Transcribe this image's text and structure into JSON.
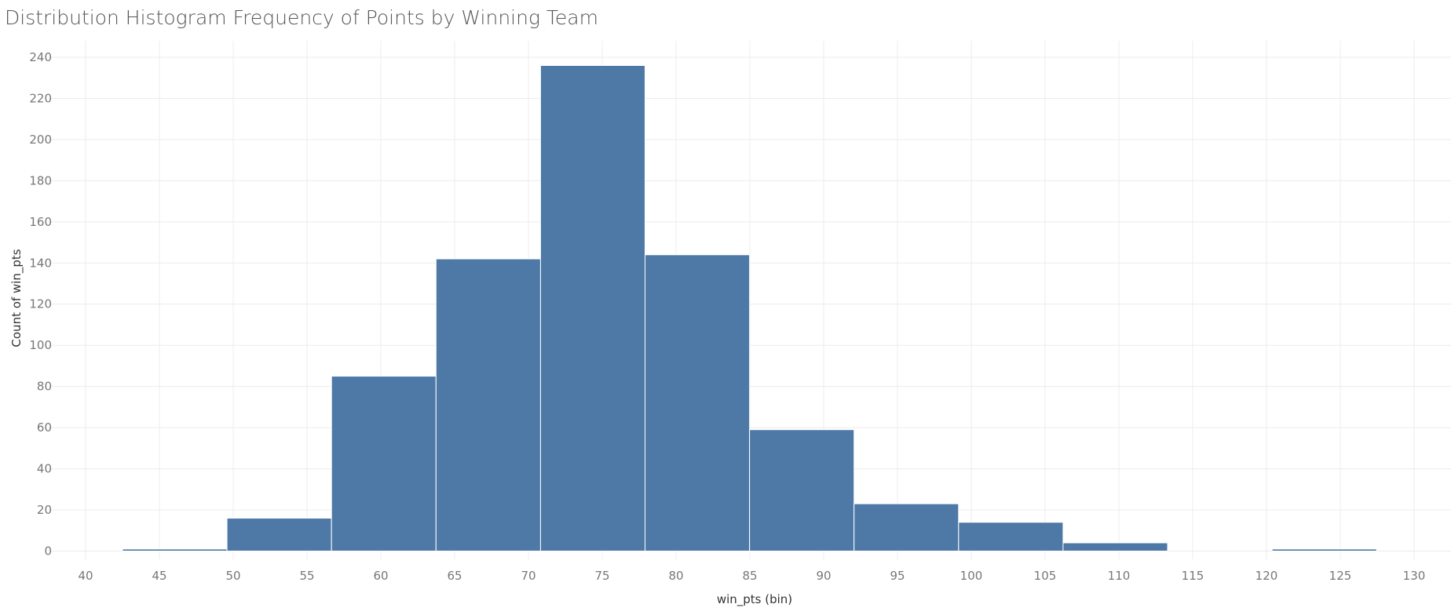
{
  "chart_data": {
    "type": "bar",
    "title": "Distribution Histogram Frequency of Points by Winning Team",
    "xlabel": "win_pts (bin)",
    "ylabel": "Count of win_pts",
    "bin_width": 7.08,
    "bins": [
      {
        "start": 42.5,
        "end": 49.58,
        "count": 1
      },
      {
        "start": 49.58,
        "end": 56.66,
        "count": 16
      },
      {
        "start": 56.66,
        "end": 63.74,
        "count": 85
      },
      {
        "start": 63.74,
        "end": 70.82,
        "count": 142
      },
      {
        "start": 70.82,
        "end": 77.9,
        "count": 236
      },
      {
        "start": 77.9,
        "end": 84.98,
        "count": 144
      },
      {
        "start": 84.98,
        "end": 92.06,
        "count": 59
      },
      {
        "start": 92.06,
        "end": 99.14,
        "count": 23
      },
      {
        "start": 99.14,
        "end": 106.22,
        "count": 14
      },
      {
        "start": 106.22,
        "end": 113.3,
        "count": 4
      },
      {
        "start": 113.3,
        "end": 120.38,
        "count": 0
      },
      {
        "start": 120.38,
        "end": 127.46,
        "count": 1
      }
    ],
    "xlim": [
      37.5,
      132.5
    ],
    "ylim": [
      -4,
      248
    ],
    "xticks": [
      40,
      45,
      50,
      55,
      60,
      65,
      70,
      75,
      80,
      85,
      90,
      95,
      100,
      105,
      110,
      115,
      120,
      125,
      130
    ],
    "yticks": [
      0,
      20,
      40,
      60,
      80,
      100,
      120,
      140,
      160,
      180,
      200,
      220,
      240
    ],
    "grid": true,
    "bar_color": "#4e79a7",
    "gridline_color": "#ececec"
  }
}
